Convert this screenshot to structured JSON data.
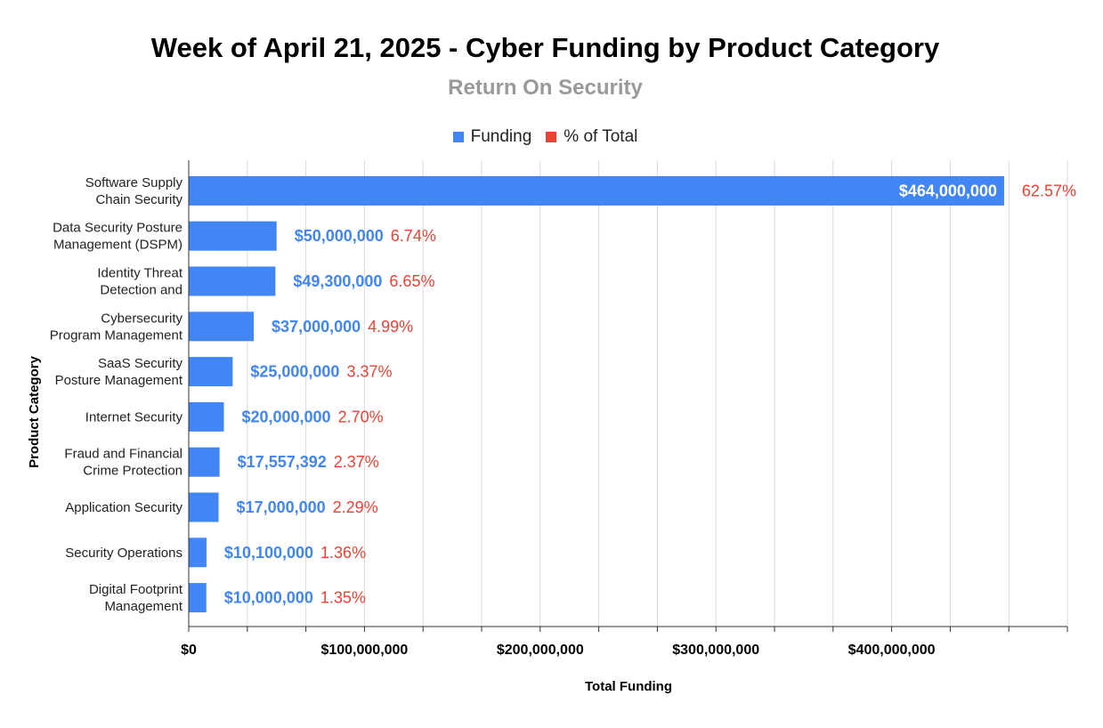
{
  "chart_data": {
    "type": "bar",
    "orientation": "horizontal",
    "title": "Week of April 21, 2025 - Cyber Funding by Product Category",
    "subtitle": "Return On Security",
    "xlabel": "Total Funding",
    "ylabel": "Product Category",
    "xlim": [
      0,
      500000000
    ],
    "x_ticks": [
      0,
      100000000,
      200000000,
      300000000,
      400000000
    ],
    "x_tick_labels": [
      "$0",
      "$100,000,000",
      "$200,000,000",
      "$300,000,000",
      "$400,000,000"
    ],
    "grid": true,
    "legend_position": "top-center",
    "legend": [
      {
        "name": "Funding",
        "color": "#4285f4"
      },
      {
        "name": "% of Total",
        "color": "#ea4335"
      }
    ],
    "categories": [
      [
        "Software Supply",
        "Chain Security"
      ],
      [
        "Data Security Posture",
        "Management (DSPM)"
      ],
      [
        "Identity Threat",
        "Detection and"
      ],
      [
        "Cybersecurity",
        "Program Management"
      ],
      [
        "SaaS Security",
        "Posture Management"
      ],
      [
        "Internet Security"
      ],
      [
        "Fraud and Financial",
        "Crime Protection"
      ],
      [
        "Application Security"
      ],
      [
        "Security Operations"
      ],
      [
        "Digital Footprint",
        "Management"
      ]
    ],
    "series": [
      {
        "name": "Funding",
        "values": [
          464000000,
          50000000,
          49300000,
          37000000,
          25000000,
          20000000,
          17557392,
          17000000,
          10100000,
          10000000
        ],
        "labels": [
          "$464,000,000",
          "$50,000,000",
          "$49,300,000",
          "$37,000,000",
          "$25,000,000",
          "$20,000,000",
          "$17,557,392",
          "$17,000,000",
          "$10,100,000",
          "$10,000,000"
        ]
      },
      {
        "name": "% of Total",
        "labels": [
          "62.57%",
          "6.74%",
          "6.65%",
          "4.99%",
          "3.37%",
          "2.70%",
          "2.37%",
          "2.29%",
          "1.36%",
          "1.35%"
        ]
      }
    ],
    "colors": {
      "bar": "#4285f4",
      "percent": "#ea4335",
      "grid": "#d9d9d9",
      "axis": "#333333"
    }
  }
}
